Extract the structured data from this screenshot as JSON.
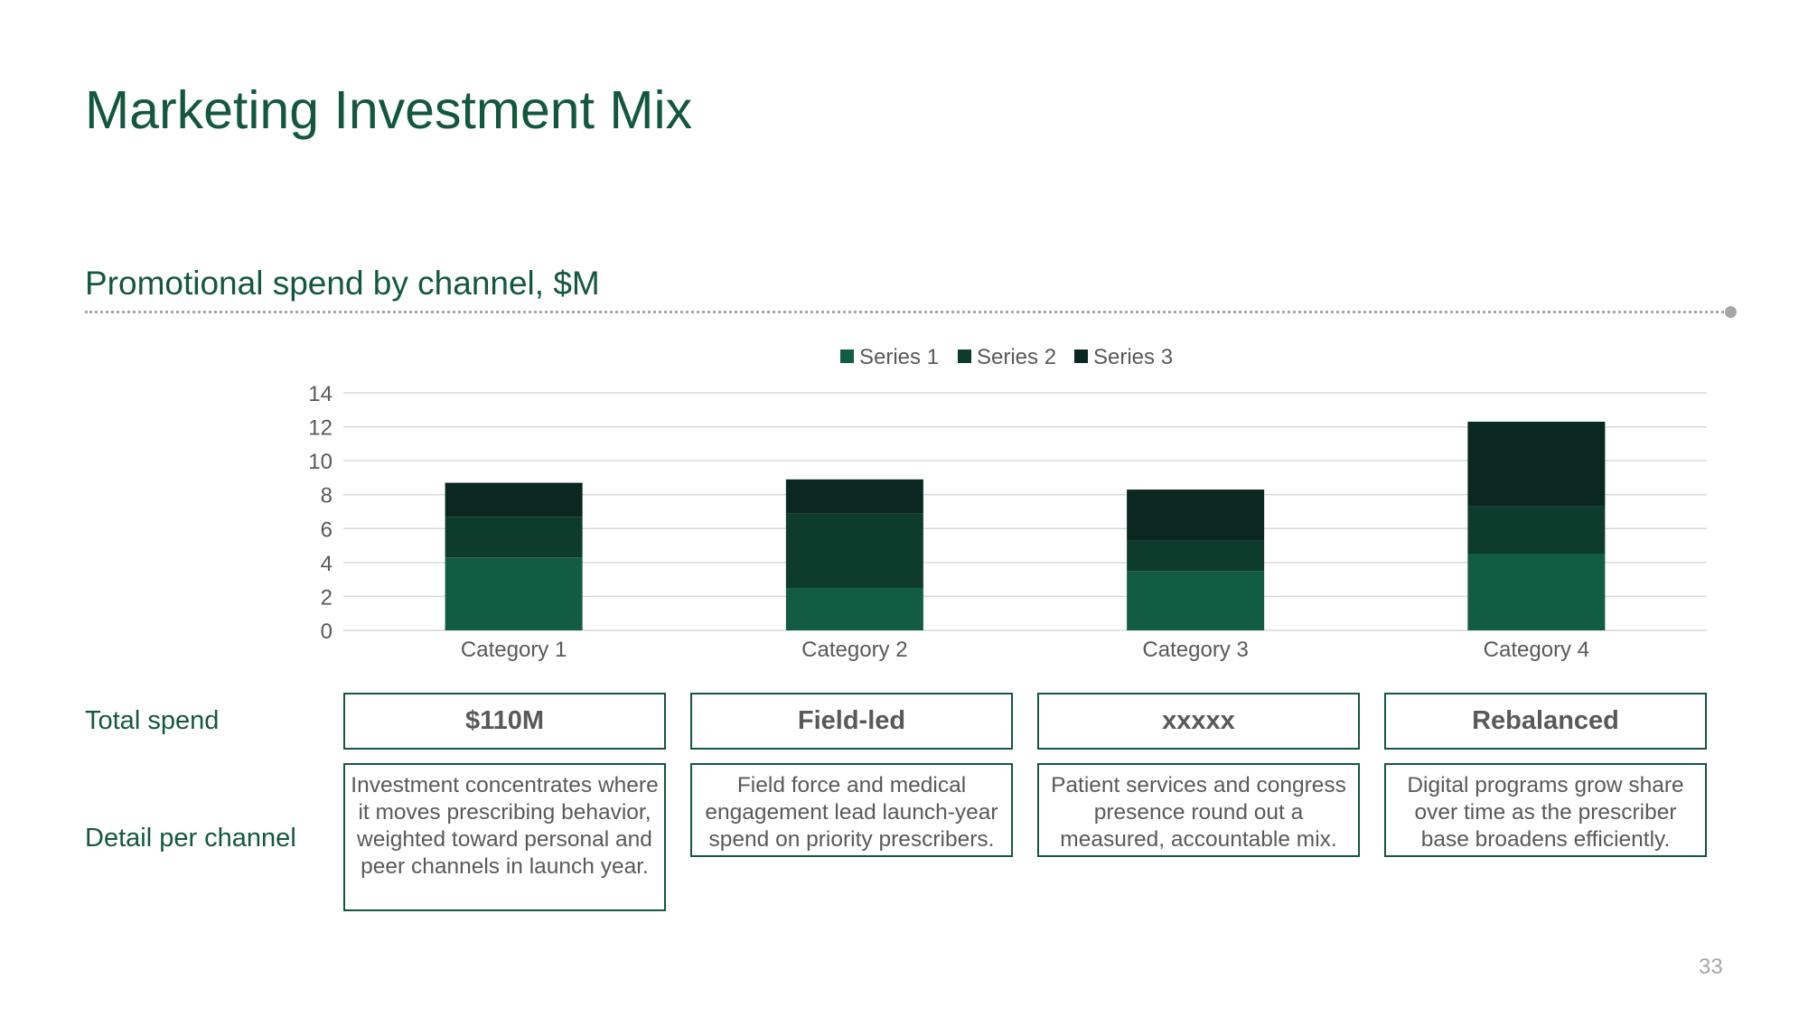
{
  "slide": {
    "title": "Marketing Investment Mix",
    "subtitle": "Promotional spend by channel, $M",
    "page_number": "33"
  },
  "rows": {
    "total_label": "Total spend",
    "detail_label": "Detail per channel"
  },
  "columns": [
    {
      "header": "$110M",
      "detail": "Investment concentrates where it moves prescribing behavior, weighted toward personal and peer channels in launch year."
    },
    {
      "header": "Field-led",
      "detail": "Field force and medical engagement lead launch-year spend on priority prescribers."
    },
    {
      "header": "xxxxx",
      "detail": "Patient services and congress presence round out a measured, accountable mix."
    },
    {
      "header": "Rebalanced",
      "detail": "Digital programs grow share over time as the prescriber base broadens efficiently."
    }
  ],
  "colors": {
    "accent": "#14573f",
    "series": [
      "#115c42",
      "#0e3c2c",
      "#0a2820"
    ],
    "grid": "#d9d9d9",
    "axis_text": "#595959"
  },
  "chart_data": {
    "type": "bar",
    "stacked": true,
    "categories": [
      "Category 1",
      "Category 2",
      "Category 3",
      "Category 4"
    ],
    "series": [
      {
        "name": "Series 1",
        "values": [
          4.3,
          2.5,
          3.5,
          4.5
        ]
      },
      {
        "name": "Series 2",
        "values": [
          2.4,
          4.4,
          1.8,
          2.8
        ]
      },
      {
        "name": "Series 3",
        "values": [
          2.0,
          2.0,
          3.0,
          5.0
        ]
      }
    ],
    "ylim": [
      0,
      14
    ],
    "yticks": [
      0,
      2,
      4,
      6,
      8,
      10,
      12,
      14
    ],
    "grid": true,
    "legend_position": "top"
  }
}
